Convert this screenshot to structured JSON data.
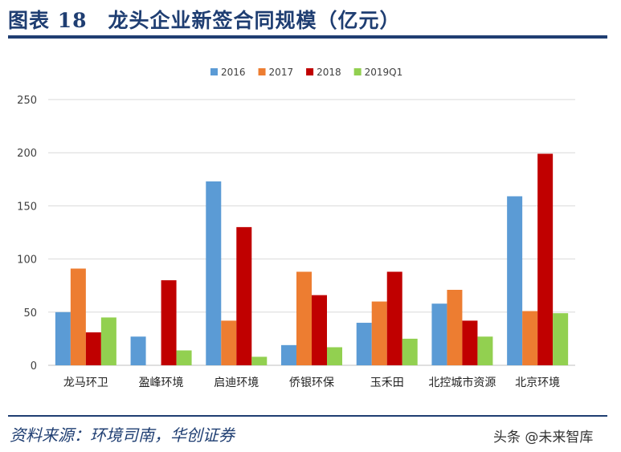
{
  "figure_title": "图表 18　龙头企业新签合同规模（亿元）",
  "source_note": "资料来源：环境司南，华创证券",
  "watermark": "头条 @未来智库",
  "colors": {
    "title": "#1f3e72",
    "series": [
      "#5b9bd5",
      "#ed7d31",
      "#c00000",
      "#92d050"
    ],
    "grid": "#d9d9d9",
    "axis_text": "#404040"
  },
  "chart_data": {
    "type": "bar",
    "title": "",
    "xlabel": "",
    "ylabel": "",
    "ylim": [
      0,
      250
    ],
    "yticks": [
      0,
      50,
      100,
      150,
      200,
      250
    ],
    "grid": true,
    "legend_position": "top",
    "categories": [
      "龙马环卫",
      "盈峰环境",
      "启迪环境",
      "侨银环保",
      "玉禾田",
      "北控城市资源",
      "北京环境"
    ],
    "series": [
      {
        "name": "2016",
        "values": [
          50,
          27,
          173,
          19,
          40,
          58,
          159
        ]
      },
      {
        "name": "2017",
        "values": [
          91,
          0,
          42,
          88,
          60,
          71,
          51
        ]
      },
      {
        "name": "2018",
        "values": [
          31,
          80,
          130,
          66,
          88,
          42,
          199
        ]
      },
      {
        "name": "2019Q1",
        "values": [
          45,
          14,
          8,
          17,
          25,
          27,
          49
        ]
      }
    ]
  }
}
